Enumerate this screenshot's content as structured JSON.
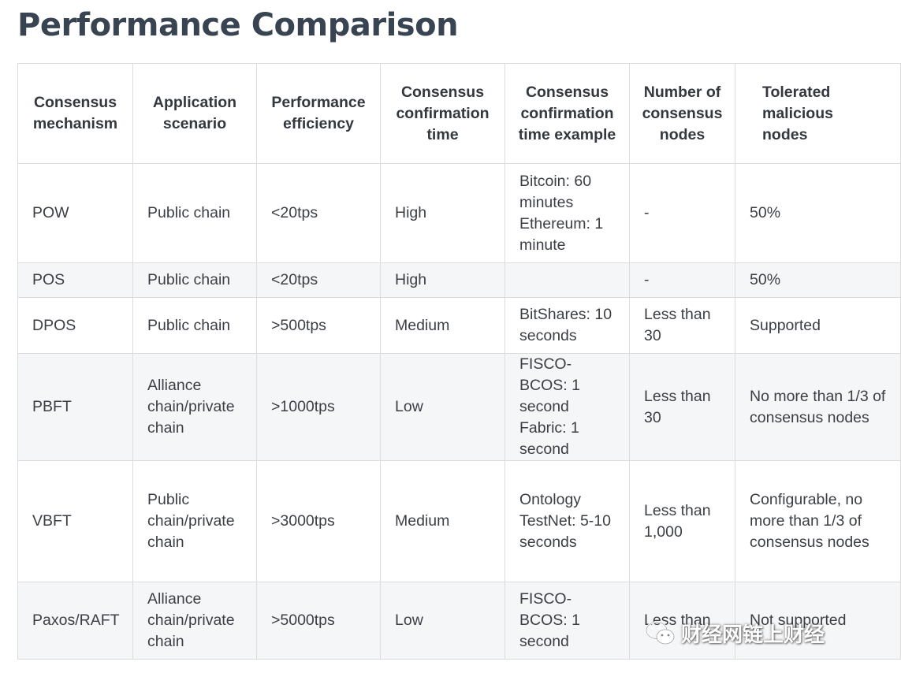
{
  "title": "Performance Comparison",
  "table": {
    "headers": [
      "Consensus mechanism",
      "Application scenario",
      "Performance efficiency",
      "Consensus confirmation time",
      "Consensus confirmation time example",
      "Number of consensus nodes",
      "Tolerated malicious nodes"
    ],
    "rows": [
      {
        "mechanism": "POW",
        "scenario": "Public chain",
        "efficiency": "<20tps",
        "confirmation_time": "High",
        "example": "Bitcoin: 60 minutes Ethereum: 1 minute",
        "nodes": "-",
        "tolerated": "50%"
      },
      {
        "mechanism": "POS",
        "scenario": "Public chain",
        "efficiency": "<20tps",
        "confirmation_time": "High",
        "example": "",
        "nodes": "-",
        "tolerated": "50%"
      },
      {
        "mechanism": "DPOS",
        "scenario": "Public chain",
        "efficiency": ">500tps",
        "confirmation_time": "Medium",
        "example": "BitShares: 10 seconds",
        "nodes": "Less than 30",
        "tolerated": "Supported"
      },
      {
        "mechanism": "PBFT",
        "scenario": "Alliance chain/private chain",
        "efficiency": ">1000tps",
        "confirmation_time": "Low",
        "example": "FISCO-BCOS: 1 second Fabric: 1 second",
        "nodes": "Less than 30",
        "tolerated": "No more than 1/3 of consensus nodes"
      },
      {
        "mechanism": "VBFT",
        "scenario": "Public chain/private chain",
        "efficiency": ">3000tps",
        "confirmation_time": "Medium",
        "example": "Ontology TestNet: 5-10 seconds",
        "nodes": "Less than 1,000",
        "tolerated": "Configurable, no more than 1/3 of consensus nodes"
      },
      {
        "mechanism": "Paxos/RAFT",
        "scenario": "Alliance chain/private chain",
        "efficiency": ">5000tps",
        "confirmation_time": "Low",
        "example": "FISCO-BCOS: 1 second",
        "nodes": "Less than",
        "tolerated": "Not supported"
      }
    ]
  },
  "watermark": {
    "text": "财经网链上财经",
    "icon": "wechat-icon"
  }
}
